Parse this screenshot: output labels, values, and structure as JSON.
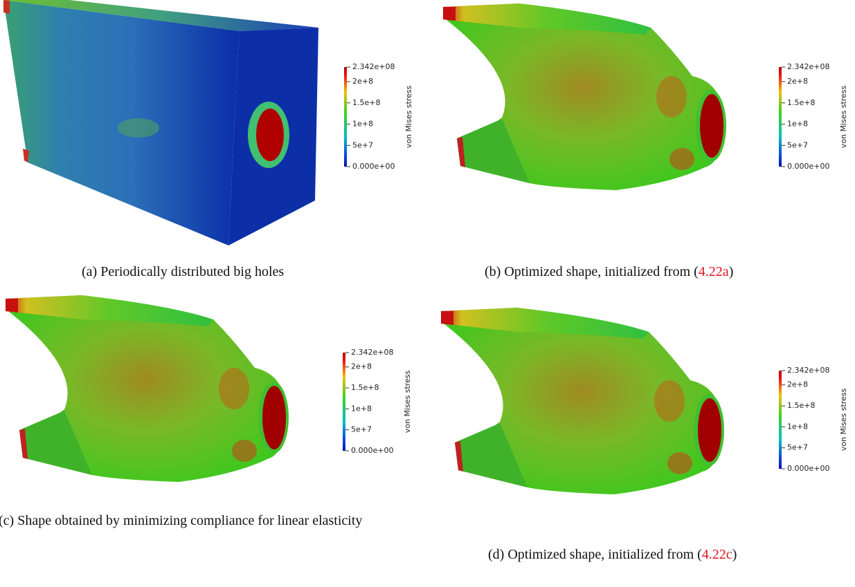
{
  "panels": [
    {
      "caption": {
        "label": "(a)",
        "text": "Periodically distributed big holes"
      },
      "colorbar": {
        "title": "von Mises stress",
        "ticks": [
          "2.342e+08",
          "2e+8",
          "1.5e+8",
          "1e+8",
          "5e+7",
          "0.000e+00"
        ]
      }
    },
    {
      "caption": {
        "label": "(b)",
        "text": "Optimized shape, initialized from (",
        "ref": "4.22a",
        "close": ")"
      },
      "colorbar": {
        "title": "von Mises stress",
        "ticks": [
          "2.342e+08",
          "2e+8",
          "1.5e+8",
          "1e+8",
          "5e+7",
          "0.000e+00"
        ]
      }
    },
    {
      "caption": {
        "label": "(c)",
        "text": "Shape obtained by minimizing compliance for linear elasticity"
      },
      "colorbar": {
        "title": "von Mises stress",
        "ticks": [
          "2.342e+08",
          "2e+8",
          "1.5e+8",
          "1e+8",
          "5e+7",
          "0.000e+00"
        ]
      }
    },
    {
      "caption": {
        "label": "(d)",
        "text": "Optimized shape, initialized from (",
        "ref": "4.22c",
        "close": ")"
      },
      "colorbar": {
        "title": "von Mises stress",
        "ticks": [
          "2.342e+08",
          "2e+8",
          "1.5e+8",
          "1e+8",
          "5e+7",
          "0.000e+00"
        ]
      }
    }
  ]
}
